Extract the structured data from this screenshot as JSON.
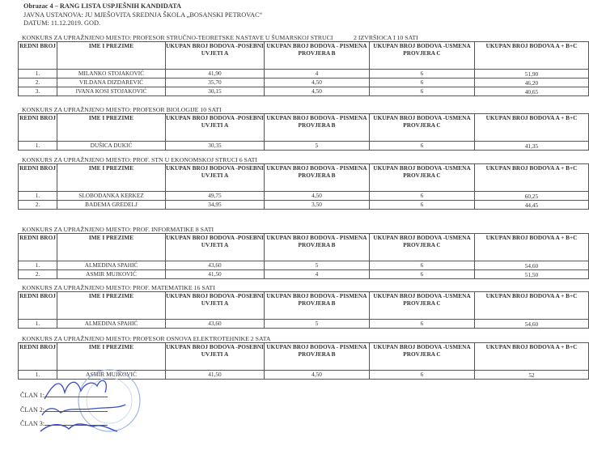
{
  "header": {
    "title": "Obrazac 4 – RANG LISTA USPJEŠNIH KANDIDATA",
    "institution": "JAVNA USTANOVA: JU MJEŠOVITA SREDNJA ŠKOLA „BOSANSKI PETROVAC“",
    "date": "DATUM: 11.12.2019. GOD."
  },
  "columns": [
    "REDNI BROJ",
    "IME I PREZIME",
    "UKUPAN BROJ BODOVA -POSEBNI UVJETI A",
    "UKUPAN BROJ BODOVA - PISMENA PROVJERA B",
    "UKUPAN BROJ BODOVA -USMENA PROVJERA C",
    "UKUPAN BROJ BODOVA A + B+C"
  ],
  "sections": [
    {
      "title": "KONKURS ZA UPRAŽNJENO MJESTO: PROFESOR STRUČNO-TEORETSKE NASTAVE U ŠUMARSKOJ STRUCI",
      "extra": "2 IZVRŠIOCA I 10 SATI",
      "rows": [
        [
          "1.",
          "MILANKO STOJAKOVIĆ",
          "41,90",
          "4",
          "6",
          "51,90"
        ],
        [
          "2.",
          "VILDANA DIZDAREVIĆ",
          "35,70",
          "4,50",
          "6",
          "46,20"
        ],
        [
          "3.",
          "IVANA KOSI STOJAKOVIĆ",
          "30,15",
          "4,50",
          "6",
          "40,65"
        ]
      ]
    },
    {
      "title": "KONKURS ZA UPRAŽNJENO MJESTO: PROFESOR BIOLOGIJE 10  SATI",
      "extra": "",
      "rows": [
        [
          "1.",
          "DUŠICA DUKIĆ",
          "30,35",
          "5",
          "6",
          "41,35"
        ]
      ]
    },
    {
      "title": "KONKURS ZA UPRAŽNJENO MJESTO: PROF. STN U EKONOMSKOJ STRUCI 6 SATI",
      "extra": "",
      "rows": [
        [
          "1.",
          "SLOBODANKA KERKEZ",
          "49,75",
          "4,50",
          "6",
          "60,25"
        ],
        [
          "2.",
          "BADEMA GREDELJ",
          "34,95",
          "3,50",
          "6",
          "44,45"
        ]
      ]
    },
    {
      "title": "KONKURS ZA UPRAŽNJENO MJESTO: PROF. INFORMATIKE         8  SATI",
      "extra": "",
      "rows": [
        [
          "1.",
          "ALMEDINA SPAHIĆ",
          "43,60",
          "5",
          "6",
          "54,60"
        ],
        [
          "2.",
          "ASMIR MUJKOVIĆ",
          "41,50",
          "4",
          "6",
          "51,50"
        ]
      ]
    },
    {
      "title": "KONKURS ZA UPRAŽNJENO MJESTO: PROF. MATEMATIKE 16 SATI",
      "extra": "",
      "rows": [
        [
          "1.",
          "ALMEDINA SPAHIĆ",
          "43,60",
          "5",
          "6",
          "54,60"
        ]
      ]
    },
    {
      "title": "KONKURS ZA UPRAŽNJENO MJESTO: PROFESOR  OSNOVA ELEKTROTEHNIKE 2 SATA",
      "extra": "",
      "rows": [
        [
          "1.",
          "ASMIR MUJKOVIĆ",
          "41,50",
          "4,50",
          "6",
          "52"
        ]
      ]
    }
  ],
  "signatures": [
    "ČLAN 1:",
    "ČLAN 2:",
    "ČLAN 3:"
  ],
  "colors": {
    "ink": "#333333",
    "signature": "#3a4fc4",
    "stamp": "#9fb0e0"
  }
}
